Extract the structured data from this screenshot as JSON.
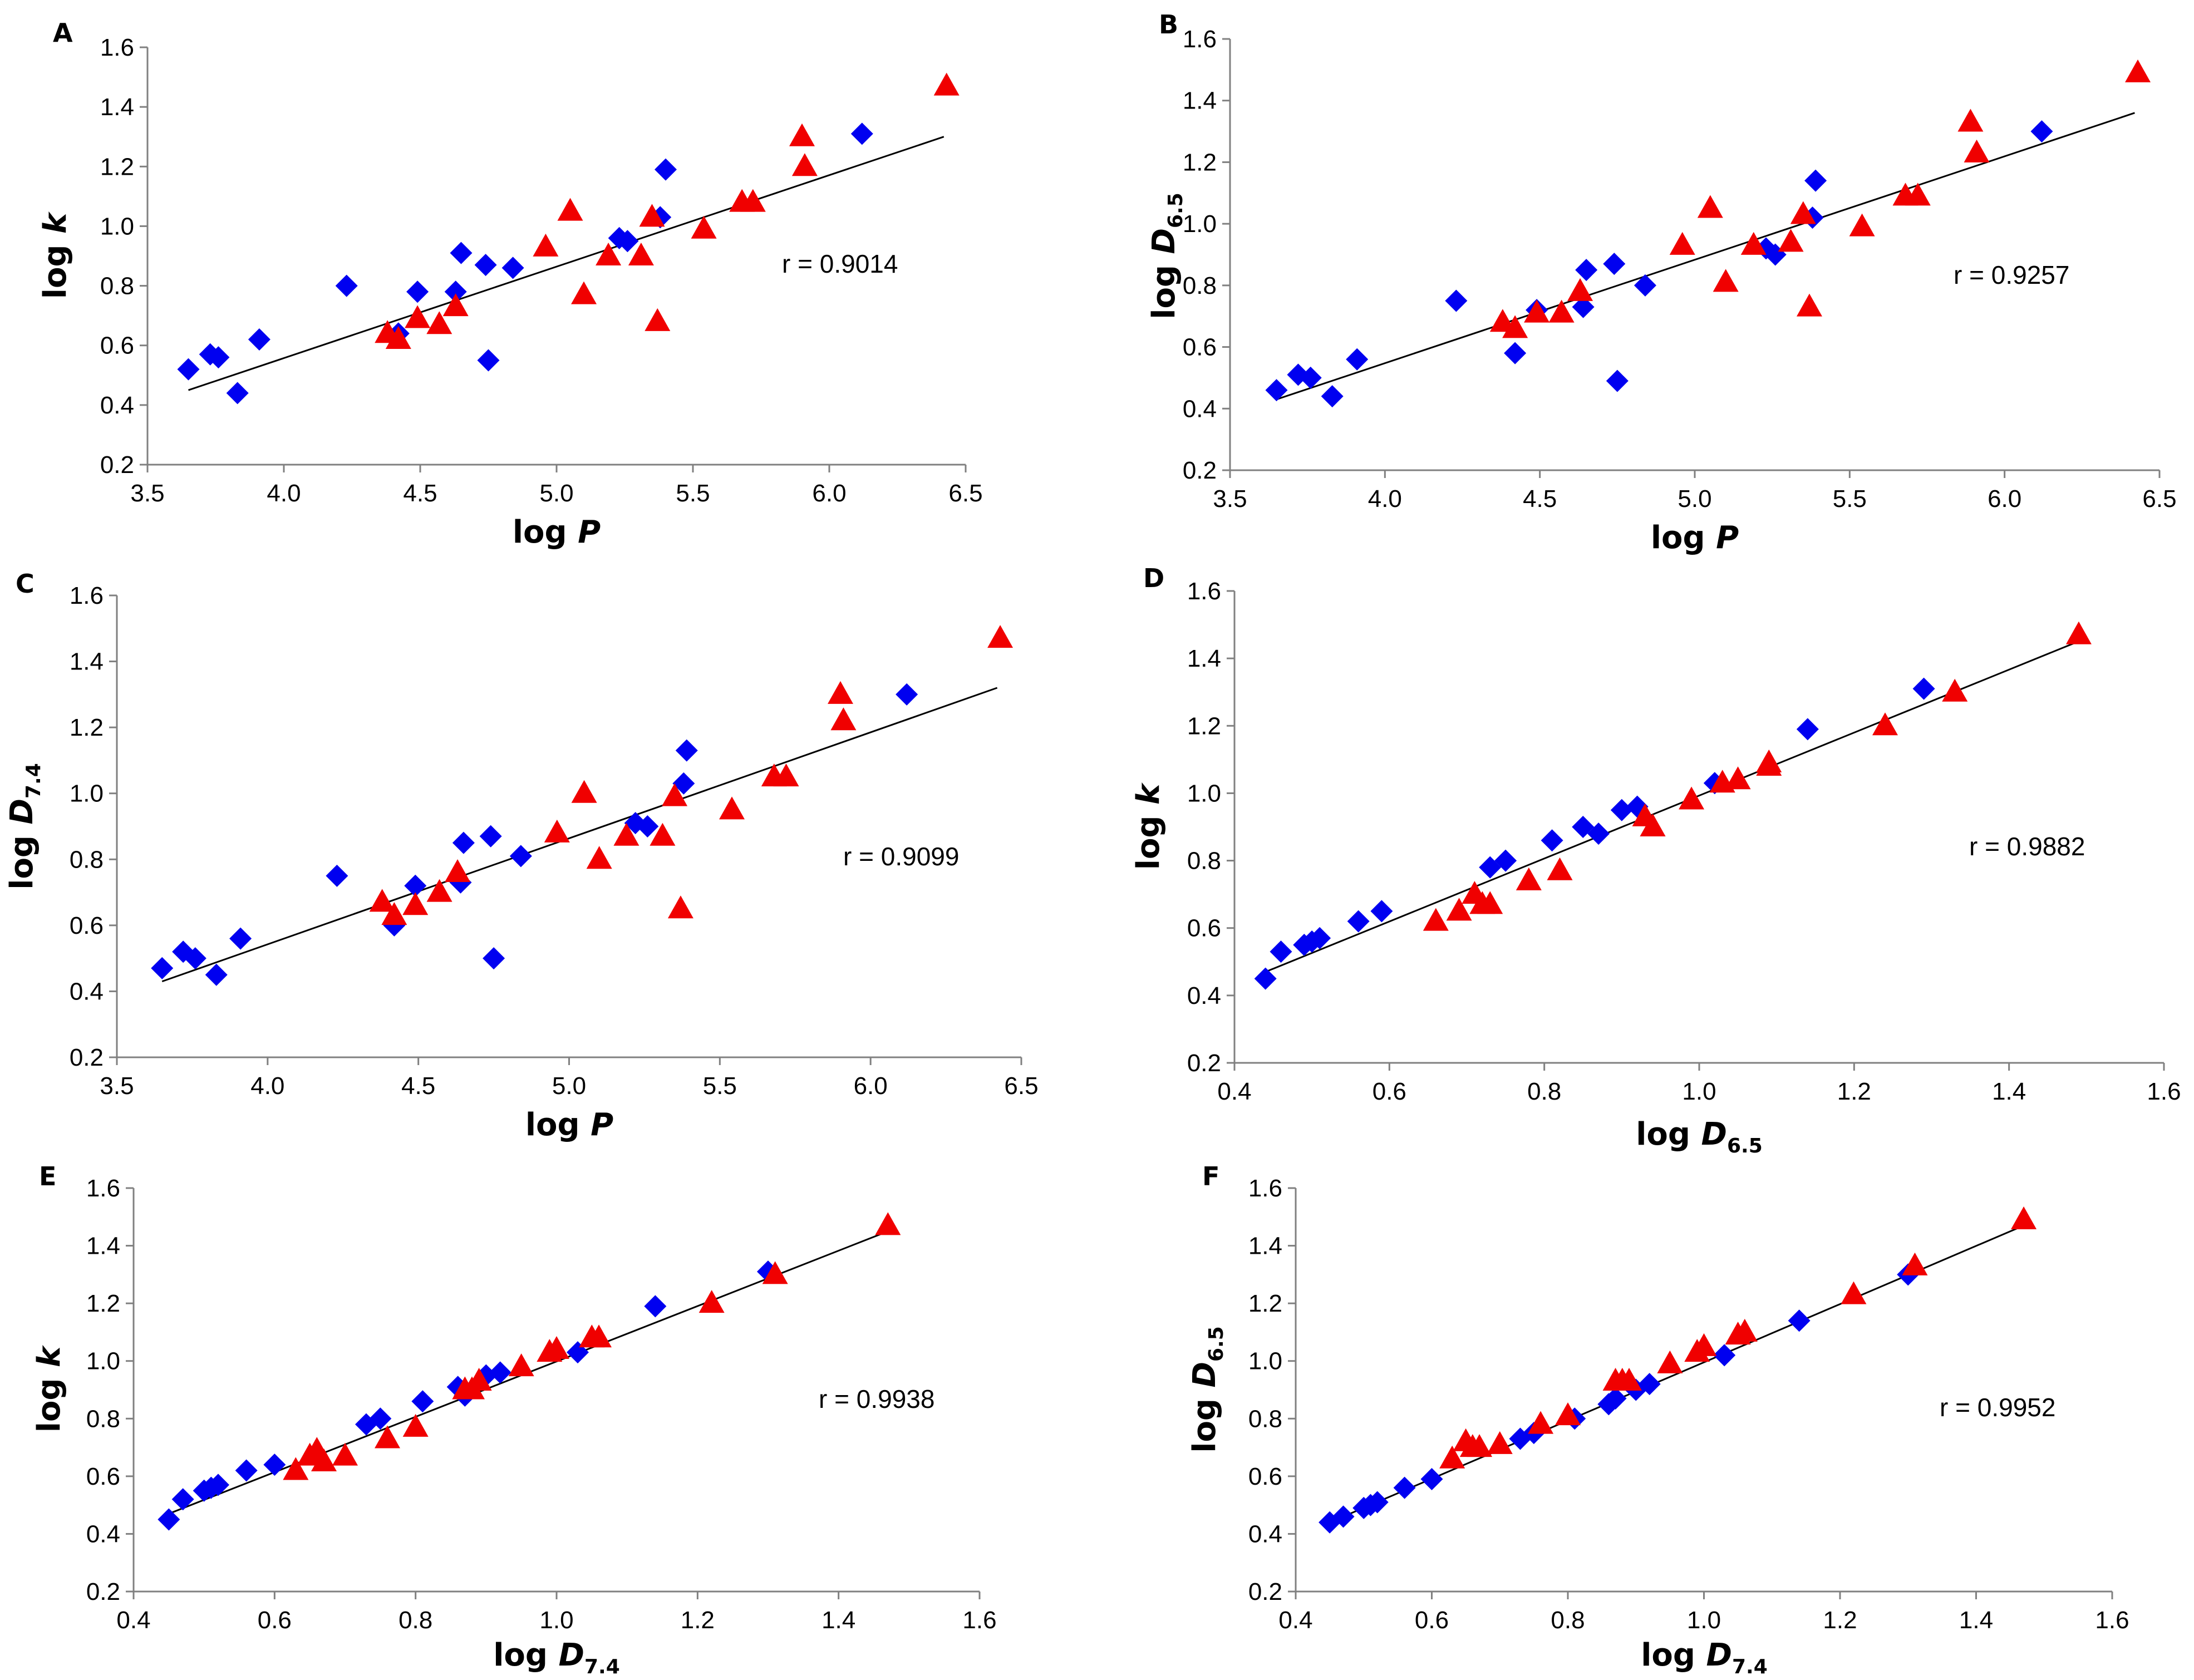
{
  "figure": {
    "colors": {
      "series_blue": "#0000F0",
      "series_red": "#F00000",
      "fit_line": "#000000",
      "axis": "#808080"
    },
    "marker_icons": {
      "series_blue": "diamond-icon",
      "series_red": "triangle-icon"
    }
  },
  "chart_data": [
    {
      "panel": "A",
      "type": "scatter",
      "title": "",
      "xlabel": {
        "main": "log ",
        "italic": "P",
        "sub": ""
      },
      "ylabel": {
        "main": "log ",
        "italic": "k",
        "sub": ""
      },
      "xlim": [
        3.5,
        6.5
      ],
      "ylim": [
        0.2,
        1.6
      ],
      "xticks": [
        "3.5",
        "4.0",
        "4.5",
        "5.0",
        "5.5",
        "6.0",
        "6.5"
      ],
      "yticks": [
        "0.2",
        "0.4",
        "0.6",
        "0.8",
        "1.0",
        "1.2",
        "1.4",
        "1.6"
      ],
      "r_text": "r = 0.9014",
      "fit": {
        "x": [
          3.65,
          6.42
        ],
        "y": [
          0.45,
          1.3
        ]
      },
      "series": [
        {
          "name": "diamond",
          "x": [
            3.65,
            3.73,
            3.76,
            3.83,
            3.91,
            4.23,
            4.42,
            4.49,
            4.63,
            4.65,
            4.74,
            4.75,
            4.84,
            5.23,
            5.26,
            5.38,
            5.4,
            6.12
          ],
          "y": [
            0.52,
            0.57,
            0.56,
            0.44,
            0.62,
            0.8,
            0.64,
            0.78,
            0.78,
            0.91,
            0.87,
            0.55,
            0.86,
            0.96,
            0.95,
            1.03,
            1.19,
            1.31
          ]
        },
        {
          "name": "triangle",
          "x": [
            4.38,
            4.42,
            4.49,
            4.57,
            4.63,
            4.96,
            5.05,
            5.1,
            5.19,
            5.31,
            5.35,
            5.37,
            5.54,
            5.68,
            5.72,
            5.9,
            5.91,
            6.43
          ],
          "y": [
            0.64,
            0.62,
            0.69,
            0.67,
            0.73,
            0.93,
            1.05,
            0.77,
            0.9,
            0.9,
            1.03,
            0.68,
            0.99,
            1.08,
            1.08,
            1.3,
            1.2,
            1.47
          ]
        }
      ]
    },
    {
      "panel": "B",
      "type": "scatter",
      "title": "",
      "xlabel": {
        "main": "log ",
        "italic": "P",
        "sub": ""
      },
      "ylabel": {
        "main": "log ",
        "italic": "D",
        "sub": "6.5"
      },
      "xlim": [
        3.5,
        6.5
      ],
      "ylim": [
        0.2,
        1.6
      ],
      "xticks": [
        "3.5",
        "4.0",
        "4.5",
        "5.0",
        "5.5",
        "6.0",
        "6.5"
      ],
      "yticks": [
        "0.2",
        "0.4",
        "0.6",
        "0.8",
        "1.0",
        "1.2",
        "1.4",
        "1.6"
      ],
      "r_text": "r = 0.9257",
      "fit": {
        "x": [
          3.65,
          6.42
        ],
        "y": [
          0.43,
          1.36
        ]
      },
      "series": [
        {
          "name": "diamond",
          "x": [
            3.65,
            3.72,
            3.76,
            3.83,
            3.91,
            4.23,
            4.42,
            4.49,
            4.64,
            4.65,
            4.74,
            4.75,
            4.84,
            5.23,
            5.26,
            5.38,
            5.39,
            6.12
          ],
          "y": [
            0.46,
            0.51,
            0.5,
            0.44,
            0.56,
            0.75,
            0.58,
            0.72,
            0.73,
            0.85,
            0.87,
            0.49,
            0.8,
            0.92,
            0.9,
            1.02,
            1.14,
            1.3
          ]
        },
        {
          "name": "triangle",
          "x": [
            4.38,
            4.42,
            4.49,
            4.57,
            4.63,
            4.96,
            5.05,
            5.1,
            5.19,
            5.31,
            5.35,
            5.37,
            5.54,
            5.68,
            5.72,
            5.89,
            5.91,
            6.43
          ],
          "y": [
            0.68,
            0.66,
            0.71,
            0.71,
            0.78,
            0.93,
            1.05,
            0.81,
            0.93,
            0.94,
            1.03,
            0.73,
            0.99,
            1.09,
            1.09,
            1.33,
            1.23,
            1.49
          ]
        }
      ]
    },
    {
      "panel": "C",
      "type": "scatter",
      "title": "",
      "xlabel": {
        "main": "log ",
        "italic": "P",
        "sub": ""
      },
      "ylabel": {
        "main": "log ",
        "italic": "D",
        "sub": "7.4"
      },
      "xlim": [
        3.5,
        6.5
      ],
      "ylim": [
        0.2,
        1.6
      ],
      "xticks": [
        "3.5",
        "4.0",
        "4.5",
        "5.0",
        "5.5",
        "6.0",
        "6.5"
      ],
      "yticks": [
        "0.2",
        "0.4",
        "0.6",
        "0.8",
        "1.0",
        "1.2",
        "1.4",
        "1.6"
      ],
      "r_text": "r = 0.9099",
      "fit": {
        "x": [
          3.65,
          6.42
        ],
        "y": [
          0.43,
          1.32
        ]
      },
      "series": [
        {
          "name": "diamond",
          "x": [
            3.65,
            3.72,
            3.76,
            3.83,
            3.91,
            4.23,
            4.42,
            4.49,
            4.64,
            4.65,
            4.74,
            4.75,
            4.84,
            5.22,
            5.26,
            5.38,
            5.39,
            6.12
          ],
          "y": [
            0.47,
            0.52,
            0.5,
            0.45,
            0.56,
            0.75,
            0.6,
            0.72,
            0.73,
            0.85,
            0.87,
            0.5,
            0.81,
            0.91,
            0.9,
            1.03,
            1.13,
            1.3
          ]
        },
        {
          "name": "triangle",
          "x": [
            4.38,
            4.42,
            4.49,
            4.57,
            4.63,
            4.96,
            5.05,
            5.1,
            5.19,
            5.31,
            5.35,
            5.37,
            5.54,
            5.68,
            5.72,
            5.9,
            5.91,
            6.43
          ],
          "y": [
            0.67,
            0.63,
            0.66,
            0.7,
            0.76,
            0.88,
            1.0,
            0.8,
            0.87,
            0.87,
            0.99,
            0.65,
            0.95,
            1.05,
            1.05,
            1.3,
            1.22,
            1.47
          ]
        }
      ]
    },
    {
      "panel": "D",
      "type": "scatter",
      "title": "",
      "xlabel": {
        "main": "log ",
        "italic": "D",
        "sub": "6.5"
      },
      "ylabel": {
        "main": "log ",
        "italic": "k",
        "sub": ""
      },
      "xlim": [
        0.4,
        1.6
      ],
      "ylim": [
        0.2,
        1.6
      ],
      "xticks": [
        "0.4",
        "0.6",
        "0.8",
        "1.0",
        "1.2",
        "1.4",
        "1.6"
      ],
      "yticks": [
        "0.2",
        "0.4",
        "0.6",
        "0.8",
        "1.0",
        "1.2",
        "1.4",
        "1.6"
      ],
      "r_text": "r = 0.9882",
      "fit": {
        "x": [
          0.44,
          1.5
        ],
        "y": [
          0.47,
          1.46
        ]
      },
      "series": [
        {
          "name": "diamond",
          "x": [
            0.44,
            0.46,
            0.49,
            0.5,
            0.51,
            0.56,
            0.59,
            0.73,
            0.75,
            0.81,
            0.85,
            0.87,
            0.9,
            0.92,
            1.02,
            1.14,
            1.29
          ],
          "y": [
            0.45,
            0.53,
            0.55,
            0.56,
            0.57,
            0.62,
            0.65,
            0.78,
            0.8,
            0.86,
            0.9,
            0.88,
            0.95,
            0.96,
            1.03,
            1.19,
            1.31
          ]
        },
        {
          "name": "triangle",
          "x": [
            0.66,
            0.69,
            0.71,
            0.72,
            0.73,
            0.78,
            0.82,
            0.93,
            0.94,
            0.94,
            0.99,
            1.03,
            1.05,
            1.09,
            1.09,
            1.24,
            1.33,
            1.49
          ],
          "y": [
            0.62,
            0.65,
            0.7,
            0.67,
            0.67,
            0.74,
            0.77,
            0.93,
            0.9,
            0.9,
            0.98,
            1.03,
            1.04,
            1.08,
            1.09,
            1.2,
            1.3,
            1.47
          ]
        }
      ]
    },
    {
      "panel": "E",
      "type": "scatter",
      "title": "",
      "xlabel": {
        "main": "log ",
        "italic": "D",
        "sub": "7.4"
      },
      "ylabel": {
        "main": "log ",
        "italic": "k",
        "sub": ""
      },
      "xlim": [
        0.4,
        1.6
      ],
      "ylim": [
        0.2,
        1.6
      ],
      "xticks": [
        "0.4",
        "0.6",
        "0.8",
        "1.0",
        "1.2",
        "1.4",
        "1.6"
      ],
      "yticks": [
        "0.2",
        "0.4",
        "0.6",
        "0.8",
        "1.0",
        "1.2",
        "1.4",
        "1.6"
      ],
      "r_text": "r = 0.9938",
      "fit": {
        "x": [
          0.45,
          1.47
        ],
        "y": [
          0.47,
          1.45
        ]
      },
      "series": [
        {
          "name": "diamond",
          "x": [
            0.45,
            0.47,
            0.5,
            0.51,
            0.52,
            0.56,
            0.6,
            0.73,
            0.75,
            0.81,
            0.86,
            0.87,
            0.9,
            0.92,
            1.03,
            1.14,
            1.3
          ],
          "y": [
            0.45,
            0.52,
            0.55,
            0.56,
            0.57,
            0.62,
            0.64,
            0.78,
            0.8,
            0.86,
            0.91,
            0.88,
            0.95,
            0.96,
            1.03,
            1.19,
            1.31
          ]
        },
        {
          "name": "triangle",
          "x": [
            0.63,
            0.65,
            0.66,
            0.67,
            0.7,
            0.76,
            0.8,
            0.87,
            0.88,
            0.89,
            0.95,
            0.99,
            1.0,
            1.05,
            1.06,
            1.22,
            1.31,
            1.47
          ],
          "y": [
            0.62,
            0.67,
            0.69,
            0.65,
            0.67,
            0.73,
            0.77,
            0.9,
            0.9,
            0.93,
            0.98,
            1.03,
            1.04,
            1.08,
            1.08,
            1.2,
            1.3,
            1.47
          ]
        }
      ]
    },
    {
      "panel": "F",
      "type": "scatter",
      "title": "",
      "xlabel": {
        "main": "log ",
        "italic": "D",
        "sub": "7.4"
      },
      "ylabel": {
        "main": "log ",
        "italic": "D",
        "sub": "6.5"
      },
      "xlim": [
        0.4,
        1.6
      ],
      "ylim": [
        0.2,
        1.6
      ],
      "xticks": [
        "0.4",
        "0.6",
        "0.8",
        "1.0",
        "1.2",
        "1.4",
        "1.6"
      ],
      "yticks": [
        "0.2",
        "0.4",
        "0.6",
        "0.8",
        "1.0",
        "1.2",
        "1.4",
        "1.6"
      ],
      "r_text": "r = 0.9952",
      "fit": {
        "x": [
          0.45,
          1.47
        ],
        "y": [
          0.44,
          1.47
        ]
      },
      "series": [
        {
          "name": "diamond",
          "x": [
            0.45,
            0.47,
            0.5,
            0.51,
            0.52,
            0.56,
            0.6,
            0.73,
            0.75,
            0.81,
            0.86,
            0.87,
            0.9,
            0.92,
            1.03,
            1.14,
            1.3
          ],
          "y": [
            0.44,
            0.46,
            0.49,
            0.5,
            0.51,
            0.56,
            0.59,
            0.73,
            0.75,
            0.8,
            0.85,
            0.87,
            0.9,
            0.92,
            1.02,
            1.14,
            1.3
          ]
        },
        {
          "name": "triangle",
          "x": [
            0.63,
            0.65,
            0.66,
            0.67,
            0.7,
            0.76,
            0.8,
            0.87,
            0.88,
            0.89,
            0.95,
            0.99,
            1.0,
            1.05,
            1.06,
            1.22,
            1.31,
            1.47
          ],
          "y": [
            0.66,
            0.72,
            0.7,
            0.7,
            0.71,
            0.78,
            0.81,
            0.93,
            0.93,
            0.93,
            0.99,
            1.03,
            1.05,
            1.09,
            1.1,
            1.23,
            1.33,
            1.49
          ]
        }
      ]
    }
  ]
}
